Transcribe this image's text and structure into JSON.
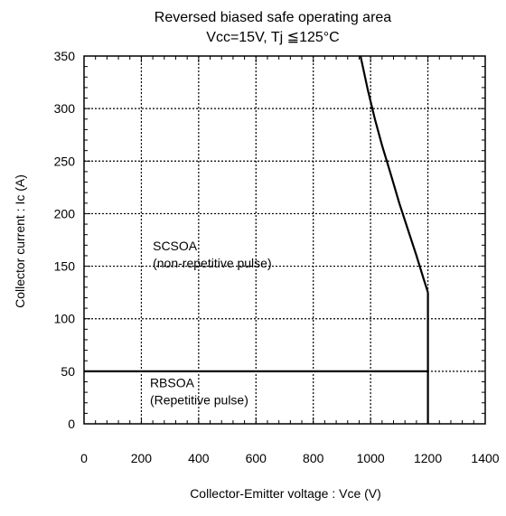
{
  "chart_data": {
    "type": "line",
    "title": "Reversed biased safe operating area",
    "subtitle": "Vcc=15V, Tj ≦125°C",
    "xlabel": "Collector-Emitter voltage : Vce (V)",
    "ylabel": "Collector current : Ic (A)",
    "xlim": [
      0,
      1400
    ],
    "ylim": [
      0,
      350
    ],
    "x_ticks": [
      0,
      200,
      400,
      600,
      800,
      1000,
      1200,
      1400
    ],
    "y_ticks": [
      0,
      50,
      100,
      150,
      200,
      250,
      300,
      350
    ],
    "grid": true,
    "series": [
      {
        "name": "",
        "x": [
          965,
          990,
          1015,
          1040,
          1070,
          1100,
          1130,
          1160,
          1185,
          1200
        ],
        "y": [
          350,
          318,
          290,
          265,
          238,
          210,
          185,
          160,
          138,
          125
        ]
      },
      {
        "name": "",
        "x": [
          1200,
          1200
        ],
        "y": [
          125,
          0
        ]
      },
      {
        "name": "",
        "x": [
          0,
          1200
        ],
        "y": [
          50,
          50
        ]
      }
    ],
    "annotations": [
      {
        "id": "scsoa",
        "lines": [
          "SCSOA",
          "(non-repetitive pulse)"
        ],
        "x": 240,
        "y": 165
      },
      {
        "id": "rbsoa",
        "lines": [
          "RBSOA",
          "(Repetitive pulse)"
        ],
        "x": 230,
        "y": 35
      }
    ]
  }
}
